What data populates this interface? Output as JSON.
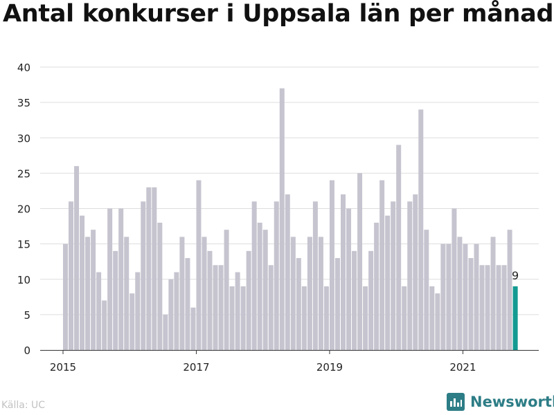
{
  "title": "Antal konkurser i Uppsala län per månad",
  "source": "Källa: UC",
  "brand": {
    "name": "Newsworthy",
    "icon": "newsworthy-logo-icon",
    "color": "#2d7d86"
  },
  "colors": {
    "bar": "#c6c4cf",
    "highlight": "#139a91",
    "grid": "#dddddd",
    "axis": "#333333",
    "text": "#222222"
  },
  "chart_data": {
    "type": "bar",
    "title": "Antal konkurser i Uppsala län per månad",
    "xlabel": "",
    "ylabel": "",
    "ylim": [
      0,
      40
    ],
    "yticks": [
      0,
      5,
      10,
      15,
      20,
      25,
      30,
      35,
      40
    ],
    "xticks": [
      "2015",
      "2017",
      "2019",
      "2021"
    ],
    "grid": true,
    "start": "2015-01",
    "highlight_label": "9",
    "values": [
      15,
      21,
      26,
      19,
      16,
      17,
      11,
      7,
      20,
      14,
      20,
      16,
      8,
      11,
      21,
      23,
      23,
      18,
      5,
      10,
      11,
      16,
      13,
      6,
      24,
      16,
      14,
      12,
      12,
      17,
      9,
      11,
      9,
      14,
      21,
      18,
      17,
      12,
      21,
      37,
      22,
      16,
      13,
      9,
      16,
      21,
      16,
      9,
      24,
      13,
      22,
      20,
      14,
      25,
      9,
      14,
      18,
      24,
      19,
      21,
      29,
      9,
      21,
      22,
      34,
      17,
      9,
      8,
      15,
      15,
      20,
      16,
      15,
      13,
      15,
      12,
      12,
      16,
      12,
      12,
      17,
      9
    ]
  }
}
